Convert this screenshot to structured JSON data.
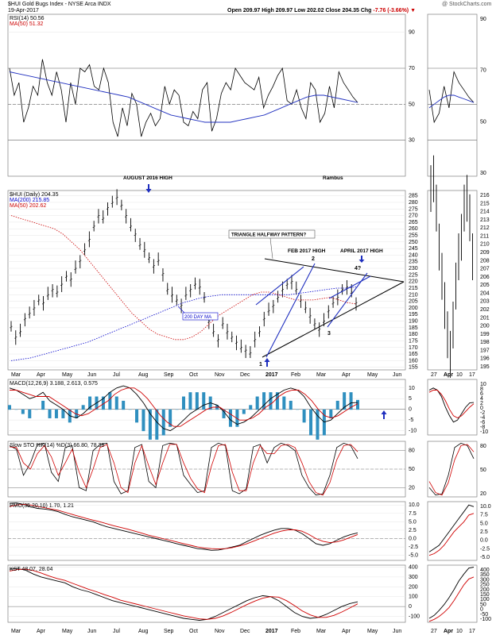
{
  "header": {
    "symbol_line": "$HUI Gold Bugs Index - NYSE Arca INDX",
    "date": "19-Apr-2017",
    "open_label": "Open",
    "open": "209.97",
    "high_label": "High",
    "high": "209.97",
    "low_label": "Low",
    "low": "202.02",
    "close_label": "Close",
    "close": "204.35",
    "chg_label": "Chg",
    "chg": "-7.76 (-3.66%)",
    "credit": "@ StockCharts.com"
  },
  "colors": {
    "price": "#000000",
    "ma50": "#cc0000",
    "ma200": "#0000cc",
    "rsi": "#000000",
    "rsi_ma": "#1f2fbf",
    "macd_hist": "#2f8fbf",
    "signal": "#d00000",
    "annotation": "#1f2fbf",
    "frame": "#808080"
  },
  "icons": {
    "arrow_down": "arrow-down-icon",
    "arrow_up": "arrow-up-icon",
    "triangle_down": "triangle-down-icon"
  },
  "chart_data": [
    {
      "type": "line",
      "panel": "RSI",
      "legend": [
        "RSI(14) 50.56",
        "MA(50) 51.32"
      ],
      "y_ticks": [
        "90",
        "70",
        "50",
        "30"
      ],
      "ylim": [
        10,
        100
      ],
      "series": [
        {
          "name": "RSI(14) 50.56",
          "values": [
            70,
            55,
            62,
            40,
            48,
            60,
            55,
            75,
            62,
            55,
            68,
            58,
            40,
            62,
            50,
            70,
            68,
            72,
            60,
            58,
            70,
            62,
            40,
            32,
            48,
            38,
            56,
            50,
            32,
            40,
            45,
            38,
            42,
            60,
            50,
            58,
            55,
            40,
            38,
            46,
            42,
            58,
            62,
            35,
            42,
            56,
            62,
            58,
            70,
            66,
            62,
            60,
            58,
            65,
            48,
            55,
            60,
            66,
            70,
            52,
            50,
            58,
            48,
            42,
            62,
            58,
            40,
            45,
            60,
            48,
            68,
            62,
            58,
            54,
            51
          ]
        },
        {
          "name": "MA(50) 51.32",
          "values": [
            68,
            67,
            66,
            65,
            64,
            63,
            62,
            61,
            60,
            59,
            58,
            57,
            56,
            55,
            54,
            52,
            50,
            48,
            46,
            44,
            43,
            42,
            41,
            40,
            40,
            40,
            40,
            41,
            42,
            43,
            44,
            46,
            48,
            50,
            52,
            54,
            55,
            55,
            54,
            53,
            52,
            51
          ]
        }
      ]
    },
    {
      "type": "line",
      "panel": "Price",
      "title": "$HUI (Daily) 204.35",
      "legend": [
        "MA(200) 215.85",
        "MA(50) 202.62"
      ],
      "y_ticks": [
        "285",
        "280",
        "275",
        "270",
        "265",
        "260",
        "255",
        "250",
        "245",
        "240",
        "235",
        "230",
        "225",
        "220",
        "215",
        "210",
        "205",
        "200",
        "195",
        "190",
        "185",
        "180",
        "175",
        "170",
        "165",
        "160",
        "155"
      ],
      "ylim": [
        153,
        289
      ],
      "x_ticks": [
        "Mar",
        "Apr",
        "May",
        "Jun",
        "Jul",
        "Aug",
        "Sep",
        "Oct",
        "Nov",
        "Dec",
        "2017",
        "Feb",
        "Mar",
        "Apr",
        "May",
        "Jun"
      ],
      "close": [
        186,
        178,
        182,
        192,
        196,
        200,
        206,
        204,
        210,
        214,
        212,
        218,
        224,
        222,
        230,
        236,
        244,
        252,
        262,
        270,
        268,
        276,
        280,
        284,
        278,
        270,
        262,
        256,
        248,
        244,
        238,
        232,
        236,
        226,
        214,
        210,
        206,
        202,
        210,
        214,
        218,
        216,
        208,
        190,
        182,
        176,
        188,
        182,
        178,
        174,
        170,
        168,
        166,
        176,
        182,
        192,
        198,
        202,
        208,
        214,
        218,
        220,
        214,
        206,
        200,
        194,
        188,
        184,
        190,
        198,
        204,
        208,
        214,
        216,
        212,
        204
      ],
      "ma200": [
        160,
        161,
        162,
        164,
        166,
        168,
        170,
        172,
        174,
        177,
        180,
        183,
        186,
        189,
        192,
        195,
        198,
        201,
        204,
        206,
        208,
        209,
        210,
        210,
        210,
        210,
        210,
        210,
        210,
        210,
        211,
        212,
        213,
        214,
        215,
        215,
        216
      ],
      "ma50": [
        270,
        268,
        266,
        264,
        262,
        260,
        256,
        250,
        244,
        236,
        228,
        220,
        212,
        204,
        196,
        190,
        184,
        180,
        178,
        176,
        176,
        178,
        182,
        188,
        194,
        198,
        202,
        206,
        210,
        212,
        212,
        210,
        208,
        206,
        206,
        206,
        207,
        208,
        206,
        204,
        203
      ]
    },
    {
      "type": "line",
      "panel": "MACD",
      "legend": [
        "MACD(12,26,9) 3.188, 2.613, 0.575"
      ],
      "y_ticks": [
        "10",
        "5",
        "0",
        "-5",
        "-10"
      ],
      "ylim": [
        -12,
        14
      ],
      "series": [
        {
          "name": "MACD",
          "values": [
            10,
            9,
            7,
            5,
            6,
            8,
            4,
            2,
            0,
            -3,
            -4,
            -2,
            1,
            3,
            5,
            8,
            10,
            11,
            10,
            7,
            3,
            -2,
            -6,
            -9,
            -10,
            -8,
            -5,
            -2,
            0,
            2,
            3,
            2,
            -1,
            -5,
            -7,
            -6,
            -4,
            -1,
            2,
            5,
            7,
            9,
            10,
            9,
            6,
            1,
            -3,
            -6,
            -5,
            -2,
            1,
            3,
            3.2
          ]
        },
        {
          "name": "Signal",
          "values": [
            9,
            9,
            8,
            7,
            6,
            6,
            6,
            4,
            2,
            0,
            -2,
            -3,
            -2,
            0,
            2,
            4,
            7,
            9,
            10,
            10,
            8,
            5,
            1,
            -3,
            -6,
            -8,
            -8,
            -6,
            -4,
            -2,
            0,
            1,
            1,
            -1,
            -3,
            -5,
            -5,
            -4,
            -2,
            1,
            3,
            6,
            8,
            9,
            9,
            7,
            4,
            0,
            -3,
            -4,
            -3,
            -1,
            1,
            2.6
          ]
        }
      ]
    },
    {
      "type": "line",
      "panel": "Slow STO",
      "legend": [
        "Slow STO %K(14) %D(3) 66.80, 78.38"
      ],
      "y_ticks": [
        "80",
        "50",
        "20"
      ],
      "ylim": [
        5,
        95
      ],
      "series": [
        {
          "name": "%K",
          "values": [
            88,
            82,
            40,
            60,
            90,
            92,
            45,
            30,
            85,
            88,
            20,
            15,
            80,
            90,
            92,
            30,
            10,
            15,
            85,
            90,
            30,
            20,
            88,
            92,
            90,
            40,
            25,
            12,
            15,
            85,
            92,
            88,
            15,
            10,
            18,
            86,
            90,
            60,
            85,
            92,
            88,
            80,
            40,
            20,
            8,
            10,
            40,
            85,
            92,
            88,
            67
          ]
        },
        {
          "name": "%D",
          "values": [
            86,
            85,
            60,
            50,
            75,
            88,
            70,
            40,
            60,
            82,
            45,
            20,
            50,
            85,
            90,
            60,
            20,
            12,
            60,
            88,
            55,
            25,
            60,
            90,
            90,
            60,
            35,
            18,
            12,
            55,
            88,
            90,
            45,
            15,
            15,
            60,
            88,
            75,
            75,
            88,
            90,
            85,
            60,
            30,
            12,
            8,
            28,
            65,
            88,
            90,
            78
          ]
        }
      ]
    },
    {
      "type": "line",
      "panel": "PMO",
      "legend": [
        "PMO(35,20,10) 1.70, 1.21"
      ],
      "y_ticks": [
        "10.0",
        "7.5",
        "5.0",
        "2.5",
        "0.0",
        "-2.5",
        "-5.0"
      ],
      "ylim": [
        -6.5,
        11
      ],
      "series": [
        {
          "name": "PMO",
          "values": [
            10.5,
            10.6,
            10.2,
            9.5,
            9.0,
            8.8,
            8.5,
            8.0,
            7.2,
            6.5,
            6.0,
            5.5,
            5.0,
            4.2,
            3.5,
            3.0,
            2.5,
            2.0,
            1.5,
            1.0,
            0.5,
            0.0,
            -0.5,
            -1.0,
            -1.5,
            -2.0,
            -2.5,
            -3.0,
            -3.2,
            -3.5,
            -3.4,
            -3.0,
            -2.5,
            -2.0,
            -1.0,
            0.0,
            1.0,
            1.8,
            2.5,
            3.0,
            3.0,
            2.5,
            1.5,
            0.0,
            -1.5,
            -2.0,
            -1.5,
            -0.5,
            0.5,
            1.2,
            1.7
          ]
        },
        {
          "name": "Signal",
          "values": [
            9.5,
            10.0,
            10.2,
            10.0,
            9.6,
            9.2,
            8.8,
            8.4,
            7.8,
            7.2,
            6.6,
            6.0,
            5.5,
            5.0,
            4.4,
            3.8,
            3.3,
            2.8,
            2.2,
            1.6,
            1.0,
            0.5,
            0.0,
            -0.5,
            -1.0,
            -1.5,
            -2.0,
            -2.5,
            -2.8,
            -3.0,
            -3.1,
            -3.0,
            -2.7,
            -2.2,
            -1.6,
            -0.8,
            0.0,
            0.8,
            1.6,
            2.2,
            2.6,
            2.6,
            2.2,
            1.2,
            0.0,
            -0.8,
            -1.2,
            -1.0,
            -0.4,
            0.4,
            1.2
          ]
        }
      ]
    },
    {
      "type": "line",
      "panel": "KST",
      "legend": [
        "KST 48.07, 28.04"
      ],
      "y_ticks": [
        "400",
        "300",
        "200",
        "100",
        "0",
        "-100"
      ],
      "ylim": [
        -160,
        420
      ],
      "series": [
        {
          "name": "KST",
          "values": [
            380,
            385,
            370,
            330,
            300,
            280,
            260,
            240,
            200,
            170,
            150,
            120,
            90,
            60,
            40,
            20,
            0,
            -20,
            -40,
            -60,
            -80,
            -100,
            -120,
            -130,
            -140,
            -130,
            -100,
            -60,
            -20,
            20,
            60,
            90,
            110,
            100,
            60,
            0,
            -60,
            -100,
            -120,
            -110,
            -80,
            -40,
            0,
            30,
            48
          ]
        },
        {
          "name": "Signal",
          "values": [
            360,
            375,
            380,
            365,
            340,
            310,
            285,
            265,
            235,
            205,
            175,
            150,
            120,
            95,
            65,
            45,
            25,
            5,
            -15,
            -35,
            -55,
            -75,
            -95,
            -110,
            -125,
            -130,
            -120,
            -95,
            -60,
            -20,
            20,
            55,
            85,
            100,
            95,
            60,
            10,
            -45,
            -85,
            -110,
            -110,
            -90,
            -55,
            -15,
            28
          ]
        }
      ]
    }
  ],
  "annotations": {
    "august_high": "AUGUST 2016 HIGH",
    "rambus": "Rambus",
    "triangle": "TRIANGLE HALFWAY PATTERN?",
    "feb_high": "FEB 2017 HIGH",
    "april_high": "APRIL 2017 HIGH",
    "ma200_label": "200 DAY MA",
    "pt1": "1",
    "pt2": "2",
    "pt3": "3",
    "pt4": "4?"
  },
  "right_panel": {
    "x_ticks": [
      "27",
      "Apr",
      "10",
      "17"
    ],
    "price_ticks": [
      "216",
      "215",
      "214",
      "213",
      "212",
      "211",
      "210",
      "209",
      "208",
      "207",
      "206",
      "205",
      "204",
      "203",
      "202",
      "201",
      "200",
      "199",
      "198",
      "197",
      "196",
      "195"
    ],
    "rsi_ticks": [
      "90",
      "70",
      "50",
      "30"
    ],
    "macd_ticks": [
      "10",
      "8",
      "6",
      "4",
      "2",
      "0",
      "-2",
      "-4",
      "-6",
      "-8",
      "-10"
    ],
    "sto_ticks": [
      "80",
      "50",
      "20"
    ],
    "pmo_ticks": [
      "10.0",
      "7.5",
      "5.0",
      "2.5",
      "0.0",
      "-2.5",
      "-5.0"
    ],
    "kst_ticks": [
      "400",
      "350",
      "300",
      "250",
      "200",
      "150",
      "100",
      "50",
      "0",
      "-50",
      "-100"
    ]
  }
}
